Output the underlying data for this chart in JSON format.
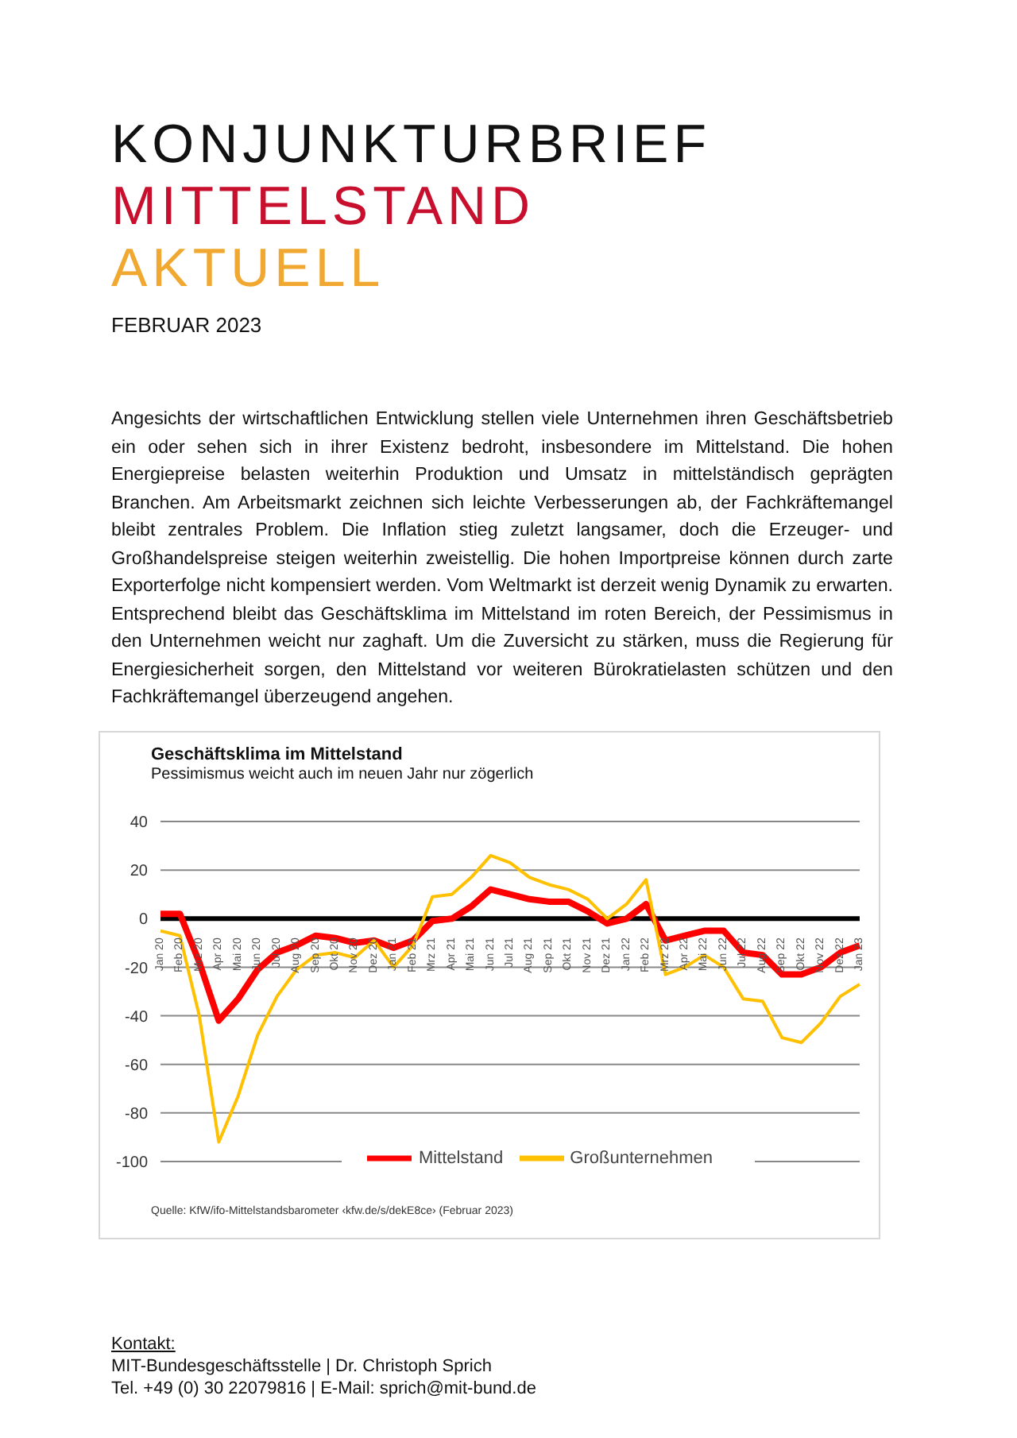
{
  "chart_data": {
    "type": "line",
    "title": "Geschäftsklima im Mittelstand",
    "subtitle": "Pessimismus weicht auch im neuen Jahr nur zögerlich",
    "annotations": [
      "KONJUNKTURBRIEF",
      "MITTELSTAND",
      "AKTUELL",
      "FEBRUAR 2023",
      "Angesichts der wirtschaftlichen Entwicklung stellen viele Unternehmen ihren Geschäftsbetrieb ein oder sehen sich in ihrer Existenz bedroht, insbesondere im Mittelstand. Die hohen Energiepreise belasten weiterhin Produktion und Umsatz in mittelständisch geprägten Branchen. Am Arbeitsmarkt zeichnen sich leichte Verbesserungen ab, der Fachkräftemangel bleibt zentrales Problem. Die Inflation stieg zuletzt langsamer, doch die Erzeuger- und Großhandelspreise steigen weiterhin zweistellig. Die hohen Importpreise können durch zarte Exporterfolge nicht kompensiert werden. Vom Weltmarkt ist derzeit wenig Dynamik zu erwarten. Entsprechend bleibt das Geschäftsklima im Mittelstand im roten Bereich, der Pessimismus in den Unternehmen weicht nur zaghaft. Um die Zuversicht zu stärken, muss die Regierung für Energiesicherheit sorgen, den Mittelstand vor weiteren Bürokratielasten schützen und den Fachkräftemangel überzeugend angehen.",
      "Quelle: KfW/ifo-Mittelstandsbarometer ‹kfw.de/s/dekE8ce› (Februar 2023)",
      "Kontakt:",
      "MIT-Bundesgeschäftsstelle | Dr. Christoph Sprich",
      "Tel. +49 (0) 30 22079816 | E-Mail: sprich@mit-bund.de"
    ],
    "categories": [
      "Jan 20",
      "Feb 20",
      "Mrz 20",
      "Apr 20",
      "Mai 20",
      "Jun 20",
      "Jul 20",
      "Aug 20",
      "Sep 20",
      "Okt 20",
      "Nov 20",
      "Dez 20",
      "Jan 21",
      "Feb 21",
      "Mrz 21",
      "Apr 21",
      "Mai 21",
      "Jun 21",
      "Jul 21",
      "Aug 21",
      "Sep 21",
      "Okt 21",
      "Nov 21",
      "Dez 21",
      "Jan 22",
      "Feb 22",
      "Mrz 22",
      "Apr 22",
      "Mai 22",
      "Jun 22",
      "Jul 22",
      "Aug 22",
      "Sep 22",
      "Okt 22",
      "Nov 22",
      "Dez 22",
      "Jan 23"
    ],
    "series": [
      {
        "name": "Mittelstand",
        "color": "#ff0000",
        "values": [
          2,
          2,
          -18,
          -42,
          -33,
          -21,
          -14,
          -11,
          -7,
          -8,
          -10,
          -9,
          -12,
          -9,
          -1,
          0,
          5,
          12,
          10,
          8,
          7,
          7,
          3,
          -2,
          0,
          6,
          -9,
          -7,
          -5,
          -5,
          -14,
          -15,
          -23,
          -23,
          -20,
          -14,
          -11
        ]
      },
      {
        "name": "Großunternehmen",
        "color": "#ffc000",
        "values": [
          -5,
          -7,
          -40,
          -92,
          -73,
          -48,
          -32,
          -21,
          -15,
          -14,
          -16,
          -9,
          -20,
          -11,
          9,
          10,
          17,
          26,
          23,
          17,
          14,
          12,
          8,
          0,
          6,
          16,
          -23,
          -20,
          -15,
          -20,
          -33,
          -34,
          -49,
          -51,
          -43,
          -32,
          -27
        ]
      }
    ],
    "ylim": [
      -100,
      40
    ],
    "yticks": [
      -100,
      -80,
      -60,
      -40,
      -20,
      0,
      20,
      40
    ],
    "grid": "y",
    "legend": "bottom",
    "marker": "none",
    "line_style": "solid"
  }
}
